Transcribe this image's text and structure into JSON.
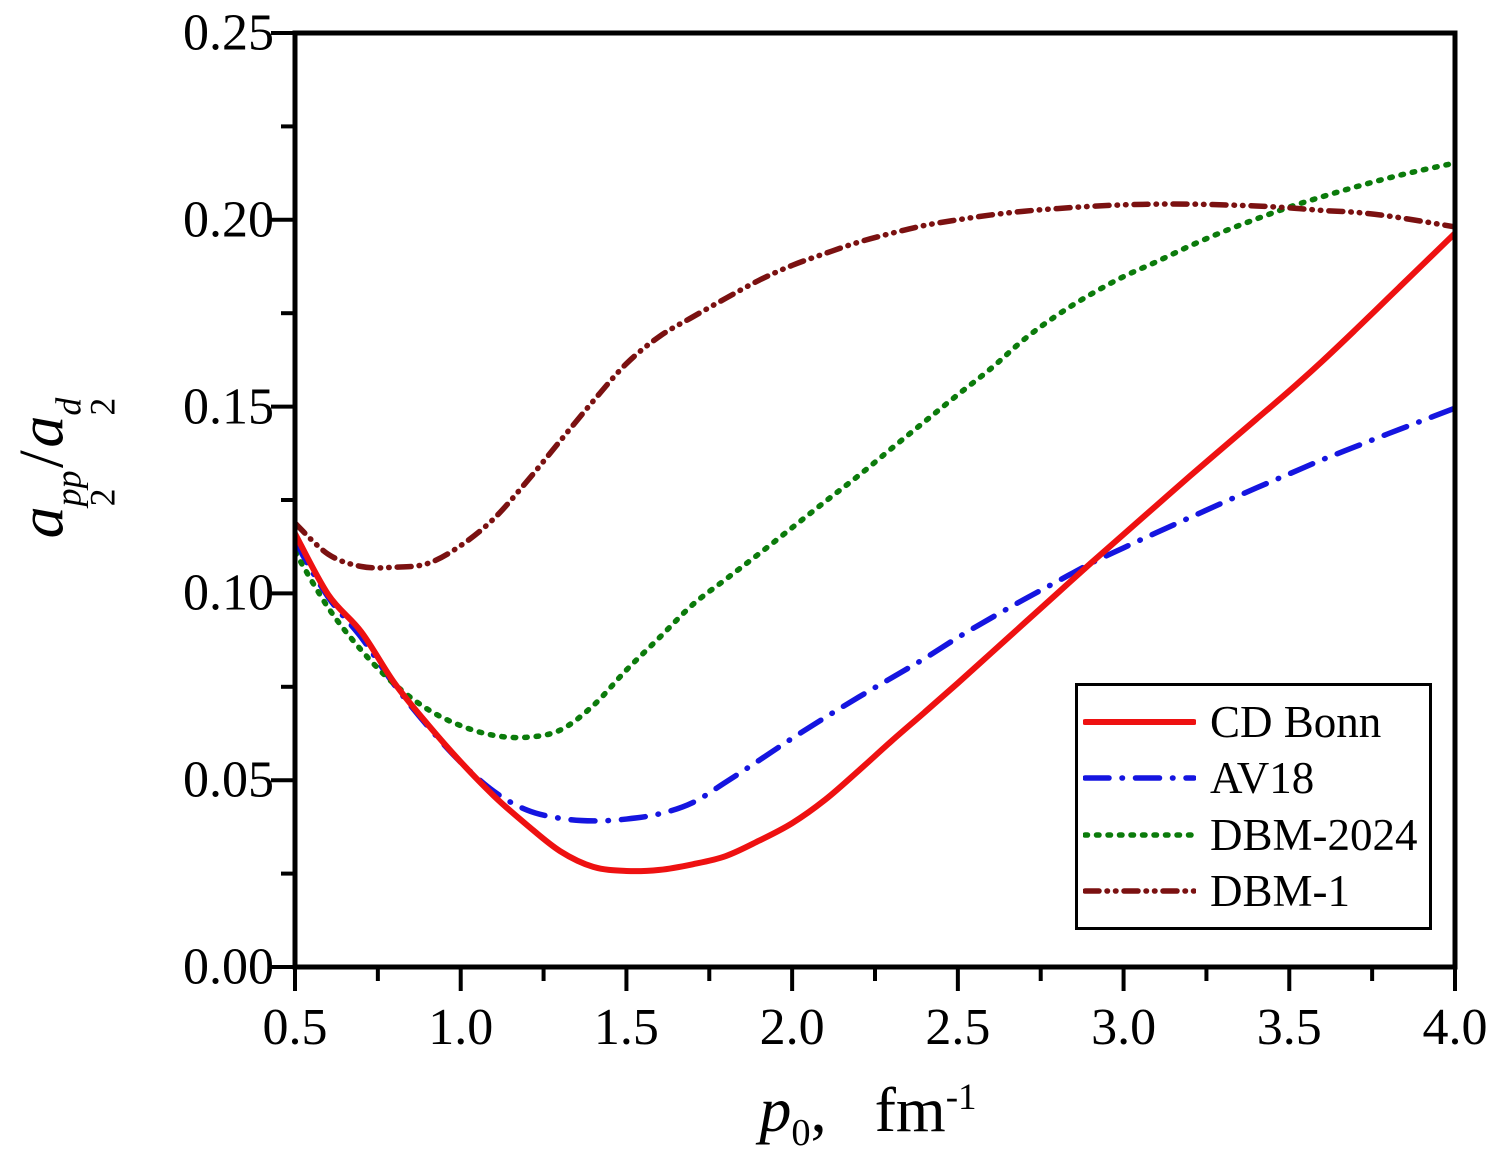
{
  "figure": {
    "background": "#ffffff"
  },
  "chart_data": {
    "type": "line",
    "title": "",
    "xlabel": "p0, fm^-1",
    "ylabel": "a2^pp / a2^d",
    "xlabel_parts": {
      "symbol": "p",
      "subscript": "0",
      "separator": ",",
      "unit": "fm",
      "superscript": "-1"
    },
    "ylabel_parts": {
      "numerator_symbol": "a",
      "numerator_subscript": "2",
      "numerator_superscript": "pp",
      "slash": "/",
      "denominator_symbol": "a",
      "denominator_subscript": "2",
      "denominator_superscript": "d"
    },
    "xlim": [
      0.5,
      4.0
    ],
    "ylim": [
      0.0,
      0.25
    ],
    "x_major_tick_step": 0.5,
    "x_minor_tick_step": 0.25,
    "y_major_tick_step": 0.05,
    "y_minor_tick_step": 0.025,
    "x_tick_labels": [
      "0.5",
      "1.0",
      "1.5",
      "2.0",
      "2.5",
      "3.0",
      "3.5",
      "4.0"
    ],
    "y_tick_labels": [
      "0.00",
      "0.05",
      "0.10",
      "0.15",
      "0.20",
      "0.25"
    ],
    "grid": false,
    "legend_position": "lower-right-inside",
    "axis_color": "#000000",
    "x": [
      0.5,
      0.6,
      0.7,
      0.8,
      0.9,
      1.0,
      1.1,
      1.2,
      1.3,
      1.4,
      1.5,
      1.6,
      1.7,
      1.8,
      1.9,
      2.0,
      2.1,
      2.2,
      2.3,
      2.4,
      2.5,
      2.6,
      2.7,
      2.8,
      2.9,
      3.0,
      3.1,
      3.2,
      3.3,
      3.4,
      3.5,
      3.6,
      3.7,
      3.8,
      3.9,
      4.0
    ],
    "series": [
      {
        "name": "CD Bonn",
        "color": "#ee1111",
        "line_style": "solid",
        "line_width": 6,
        "values": [
          0.116,
          0.0997,
          0.0897,
          0.076,
          0.065,
          0.0549,
          0.0458,
          0.038,
          0.031,
          0.0268,
          0.0257,
          0.026,
          0.0275,
          0.0297,
          0.0338,
          0.0385,
          0.0448,
          0.0525,
          0.0605,
          0.0682,
          0.076,
          0.084,
          0.092,
          0.1,
          0.108,
          0.1158,
          0.1236,
          0.1314,
          0.139,
          0.1466,
          0.1542,
          0.1622,
          0.1706,
          0.1792,
          0.1878,
          0.1964
        ]
      },
      {
        "name": "AV18",
        "color": "#1515e0",
        "line_style": "dash-dot",
        "line_width": 5.5,
        "values": [
          0.1138,
          0.099,
          0.0882,
          0.0755,
          0.0645,
          0.0548,
          0.047,
          0.042,
          0.0398,
          0.0391,
          0.0396,
          0.041,
          0.044,
          0.0495,
          0.0553,
          0.0612,
          0.0668,
          0.0722,
          0.0774,
          0.0826,
          0.0882,
          0.0934,
          0.0984,
          0.1032,
          0.108,
          0.1122,
          0.1163,
          0.1203,
          0.1243,
          0.1282,
          0.132,
          0.1358,
          0.1393,
          0.1428,
          0.1462,
          0.1496
        ]
      },
      {
        "name": "DBM-2024",
        "color": "#0b7b0b",
        "line_style": "dot",
        "line_width": 5.5,
        "values": [
          0.1111,
          0.0962,
          0.0848,
          0.0757,
          0.069,
          0.0646,
          0.062,
          0.0615,
          0.0634,
          0.07,
          0.0795,
          0.0882,
          0.097,
          0.1038,
          0.1106,
          0.1176,
          0.1246,
          0.1315,
          0.1388,
          0.146,
          0.1532,
          0.1602,
          0.168,
          0.1745,
          0.18,
          0.1848,
          0.1888,
          0.193,
          0.1968,
          0.2002,
          0.2034,
          0.2062,
          0.2088,
          0.2112,
          0.2133,
          0.2152
        ]
      },
      {
        "name": "DBM-1",
        "color": "#7b1111",
        "line_style": "dash-dot-dot",
        "line_width": 5.5,
        "values": [
          0.1188,
          0.1105,
          0.1072,
          0.107,
          0.108,
          0.1128,
          0.12,
          0.13,
          0.1408,
          0.1515,
          0.1615,
          0.1688,
          0.174,
          0.179,
          0.1838,
          0.1878,
          0.191,
          0.194,
          0.1964,
          0.1985,
          0.2,
          0.2013,
          0.2023,
          0.203,
          0.2036,
          0.204,
          0.2042,
          0.2042,
          0.204,
          0.2037,
          0.2032,
          0.2025,
          0.202,
          0.201,
          0.1996,
          0.1981
        ]
      }
    ]
  }
}
